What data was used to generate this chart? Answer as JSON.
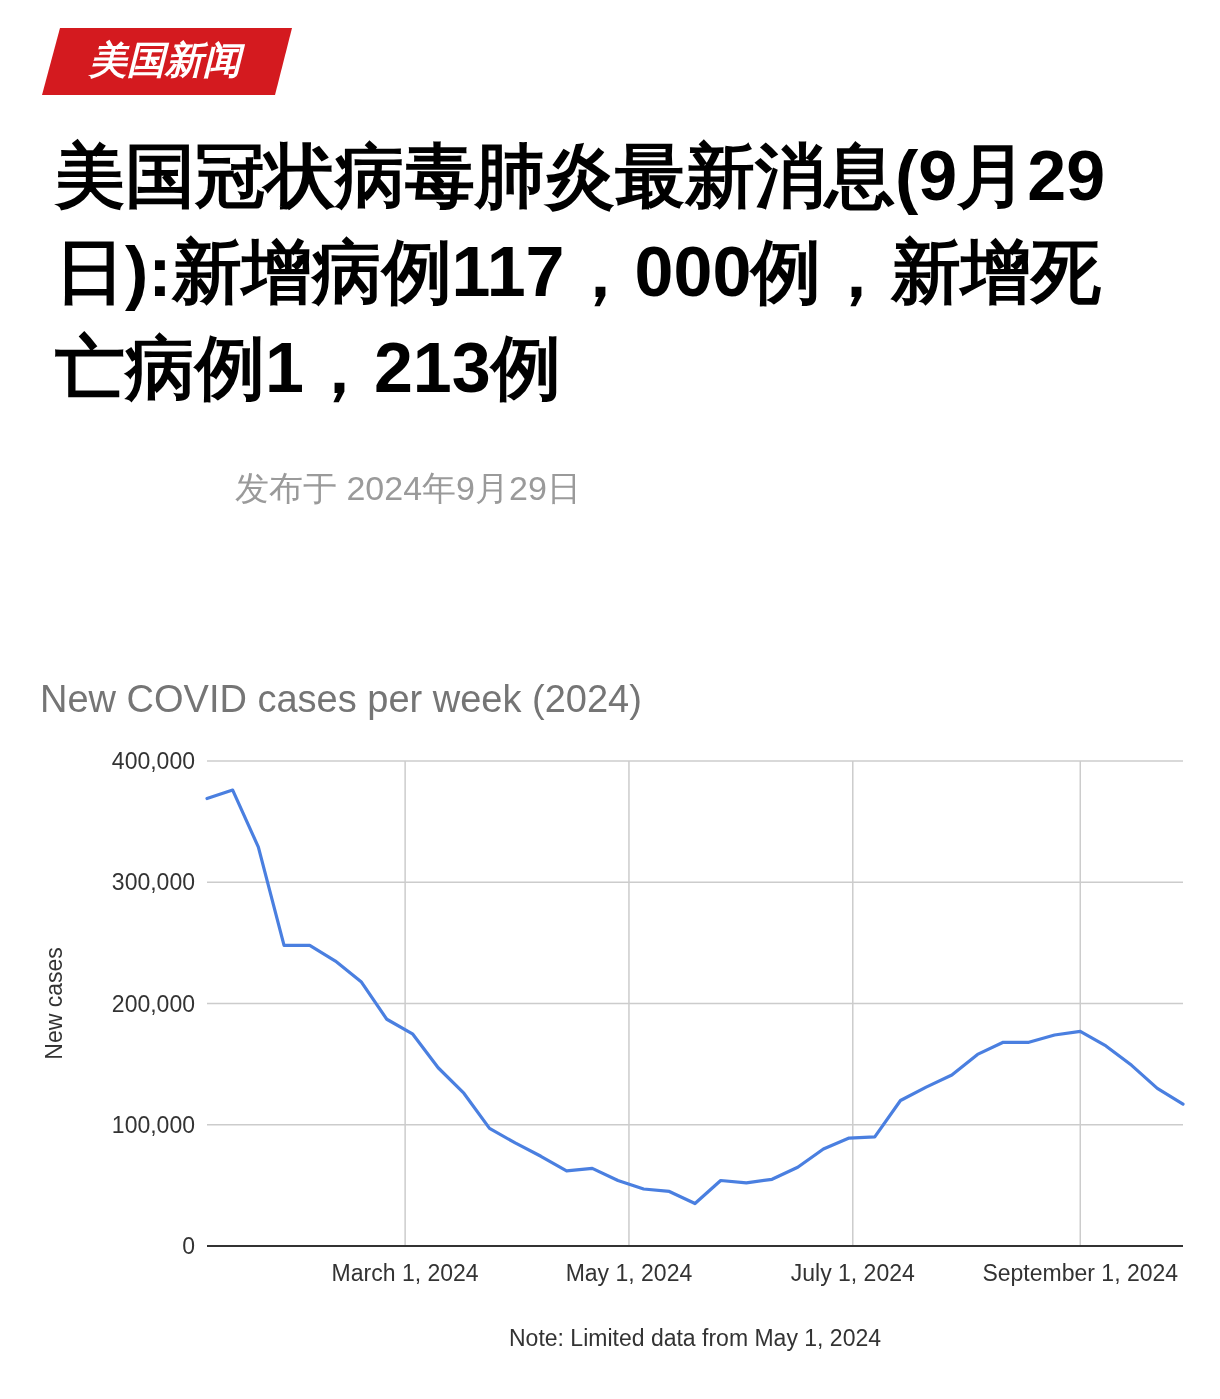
{
  "chart_data": {
    "type": "line",
    "title": "美国冠状病毒肺炎最新消息(9月29日):新增病例117，000例，新增死亡病例1，213例",
    "subtitle": "New COVID cases per week (2024)",
    "ylabel": "New cases",
    "annotations": [
      "美国新闻",
      "发布于 2024年9月29日",
      "Note: Limited data from May 1, 2024"
    ],
    "x": [
      "2024-01-07",
      "2024-01-14",
      "2024-01-21",
      "2024-01-28",
      "2024-02-04",
      "2024-02-11",
      "2024-02-18",
      "2024-02-25",
      "2024-03-03",
      "2024-03-10",
      "2024-03-17",
      "2024-03-24",
      "2024-03-31",
      "2024-04-07",
      "2024-04-14",
      "2024-04-21",
      "2024-04-28",
      "2024-05-05",
      "2024-05-12",
      "2024-05-19",
      "2024-05-26",
      "2024-06-02",
      "2024-06-09",
      "2024-06-16",
      "2024-06-23",
      "2024-06-30",
      "2024-07-07",
      "2024-07-14",
      "2024-07-21",
      "2024-07-28",
      "2024-08-04",
      "2024-08-11",
      "2024-08-18",
      "2024-08-25",
      "2024-09-01",
      "2024-09-08",
      "2024-09-15",
      "2024-09-22",
      "2024-09-29"
    ],
    "series": [
      {
        "color": "#4a7fe0",
        "values": [
          369000,
          376000,
          329000,
          248000,
          248000,
          235000,
          218000,
          187000,
          175000,
          147000,
          126000,
          97000,
          85000,
          74000,
          62000,
          64000,
          54000,
          47000,
          45000,
          35000,
          54000,
          52000,
          55000,
          65000,
          80000,
          89000,
          90000,
          120000,
          131000,
          141000,
          158000,
          168000,
          168000,
          174000,
          177000,
          165000,
          149000,
          130000,
          117000
        ]
      }
    ],
    "xlim": [
      "2024-01-07",
      "2024-09-29"
    ],
    "xticks": [
      {
        "value": "2024-03-01",
        "label": "March 1, 2024"
      },
      {
        "value": "2024-05-01",
        "label": "May 1, 2024"
      },
      {
        "value": "2024-07-01",
        "label": "July 1, 2024"
      },
      {
        "value": "2024-09-01",
        "label": "September 1, 2024"
      }
    ],
    "ylim": [
      0,
      400000
    ],
    "yticks": [
      0,
      {
        "value": 100000,
        "label": "100,000"
      },
      {
        "value": 200000,
        "label": "200,000"
      },
      {
        "value": 300000,
        "label": "300,000"
      },
      {
        "value": 400000,
        "label": "400,000"
      }
    ],
    "grid": true,
    "marker": "none",
    "line_style": "solid"
  }
}
